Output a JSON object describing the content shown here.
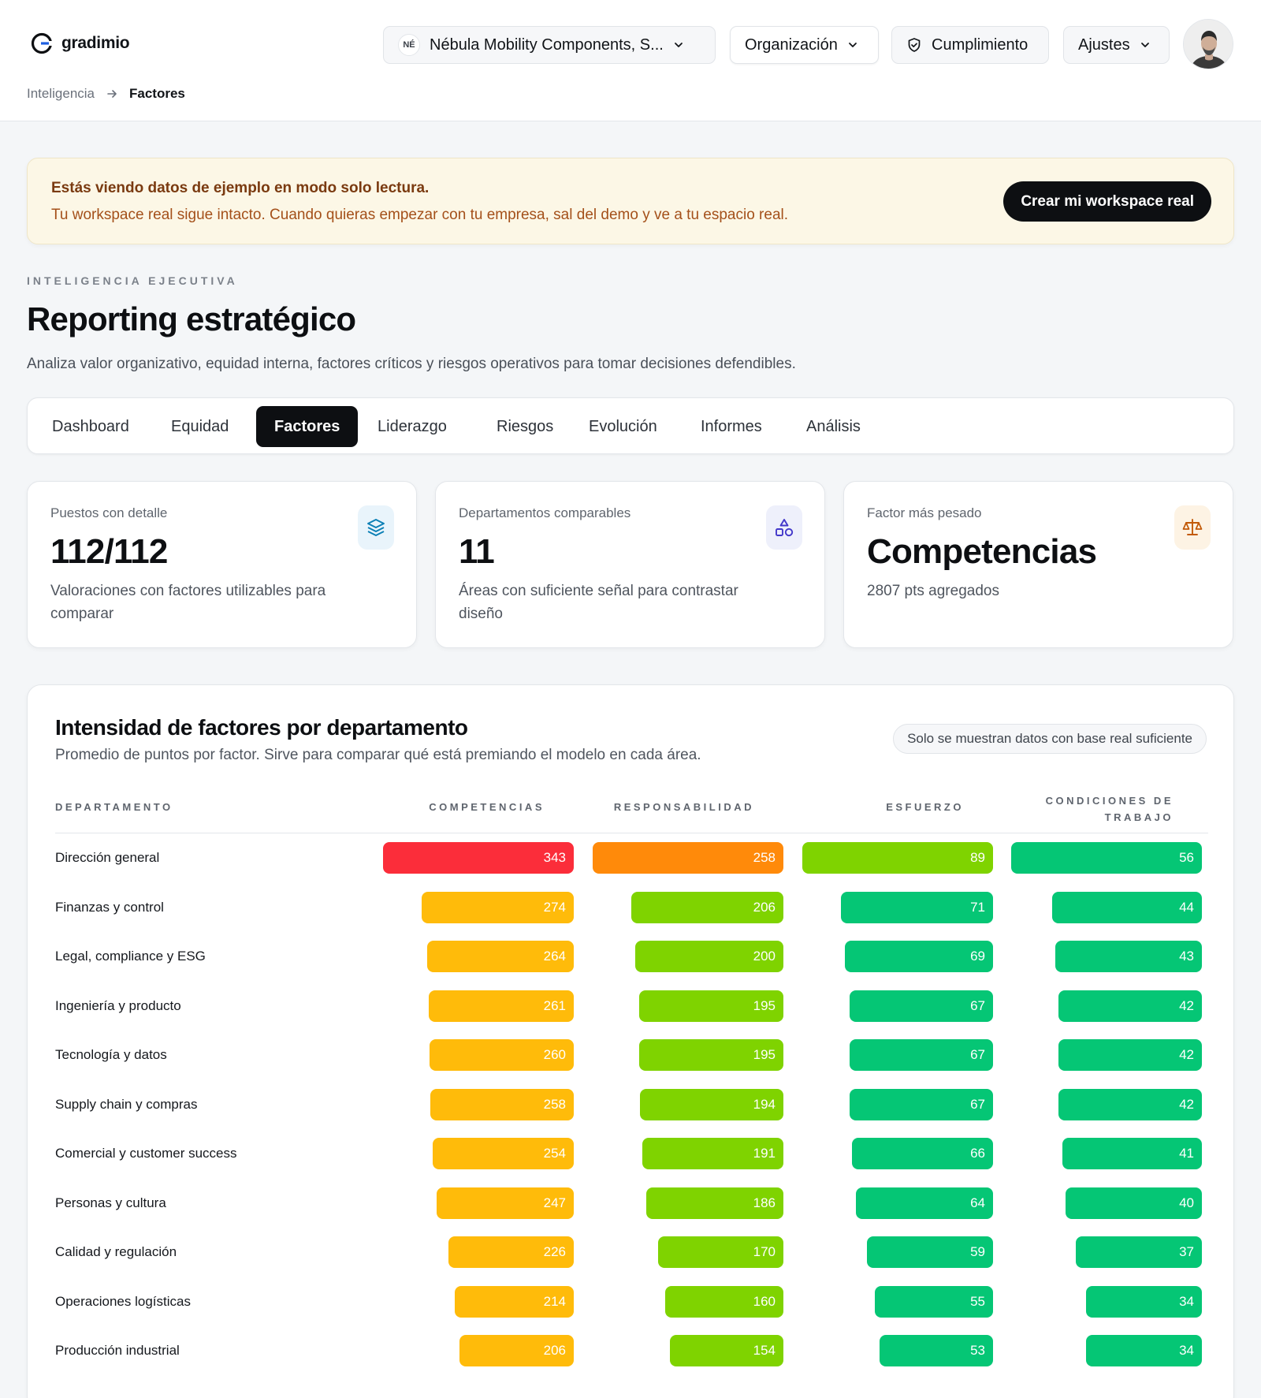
{
  "header": {
    "brand": "gradimio",
    "org_initials": "NÉ",
    "org_name": "Nébula Mobility Components, S...",
    "menu_organizacion": "Organización",
    "menu_cumplimiento": "Cumplimiento",
    "menu_ajustes": "Ajustes"
  },
  "breadcrumb": {
    "parent": "Inteligencia",
    "current": "Factores"
  },
  "banner": {
    "title": "Estás viendo datos de ejemplo en modo solo lectura.",
    "text": "Tu workspace real sigue intacto. Cuando quieras empezar con tu empresa, sal del demo y ve a tu espacio real.",
    "cta": "Crear mi workspace real"
  },
  "hero": {
    "eyebrow": "INTELIGENCIA EJECUTIVA",
    "title": "Reporting estratégico",
    "subtitle": "Analiza valor organizativo, equidad interna, factores críticos y riesgos operativos para tomar decisiones defendibles."
  },
  "tabs": [
    "Dashboard",
    "Equidad",
    "Factores",
    "Liderazgo",
    "Riesgos",
    "Evolución",
    "Informes",
    "Análisis"
  ],
  "active_tab": "Factores",
  "kpis": [
    {
      "label": "Puestos con detalle",
      "value": "112/112",
      "desc": "Valoraciones con factores utilizables para comparar",
      "icon": "layers-icon"
    },
    {
      "label": "Departamentos comparables",
      "value": "11",
      "desc": "Áreas con suficiente señal para contrastar diseño",
      "icon": "shapes-icon"
    },
    {
      "label": "Factor más pesado",
      "value": "Competencias",
      "desc": "2807 pts agregados",
      "icon": "scale-icon"
    }
  ],
  "panel": {
    "title": "Intensidad de factores por departamento",
    "subtitle": "Promedio de puntos por factor. Sirve para comparar qué está premiando el modelo en cada área.",
    "pill": "Solo se muestran datos con base real suficiente"
  },
  "chart_data": {
    "type": "table",
    "columns": [
      "DEPARTAMENTO",
      "COMPETENCIAS",
      "RESPONSABILIDAD",
      "ESFUERZO",
      "CONDICIONES DE TRABAJO"
    ],
    "rows": [
      {
        "department": "Dirección general",
        "values": [
          343,
          258,
          89,
          56
        ]
      },
      {
        "department": "Finanzas y control",
        "values": [
          274,
          206,
          71,
          44
        ]
      },
      {
        "department": "Legal, compliance y ESG",
        "values": [
          264,
          200,
          69,
          43
        ]
      },
      {
        "department": "Ingeniería y producto",
        "values": [
          261,
          195,
          67,
          42
        ]
      },
      {
        "department": "Tecnología y datos",
        "values": [
          260,
          195,
          67,
          42
        ]
      },
      {
        "department": "Supply chain y compras",
        "values": [
          258,
          194,
          67,
          42
        ]
      },
      {
        "department": "Comercial y customer success",
        "values": [
          254,
          191,
          66,
          41
        ]
      },
      {
        "department": "Personas y cultura",
        "values": [
          247,
          186,
          64,
          40
        ]
      },
      {
        "department": "Calidad y regulación",
        "values": [
          226,
          170,
          59,
          37
        ]
      },
      {
        "department": "Operaciones logísticas",
        "values": [
          214,
          160,
          55,
          34
        ]
      },
      {
        "department": "Producción industrial",
        "values": [
          206,
          154,
          53,
          34
        ]
      }
    ],
    "colors": {
      "red": "#fb2d3a",
      "orange": "#ff8a0a",
      "amber": "#ffbb0a",
      "lime": "#7fd300",
      "green": "#05c675"
    }
  }
}
